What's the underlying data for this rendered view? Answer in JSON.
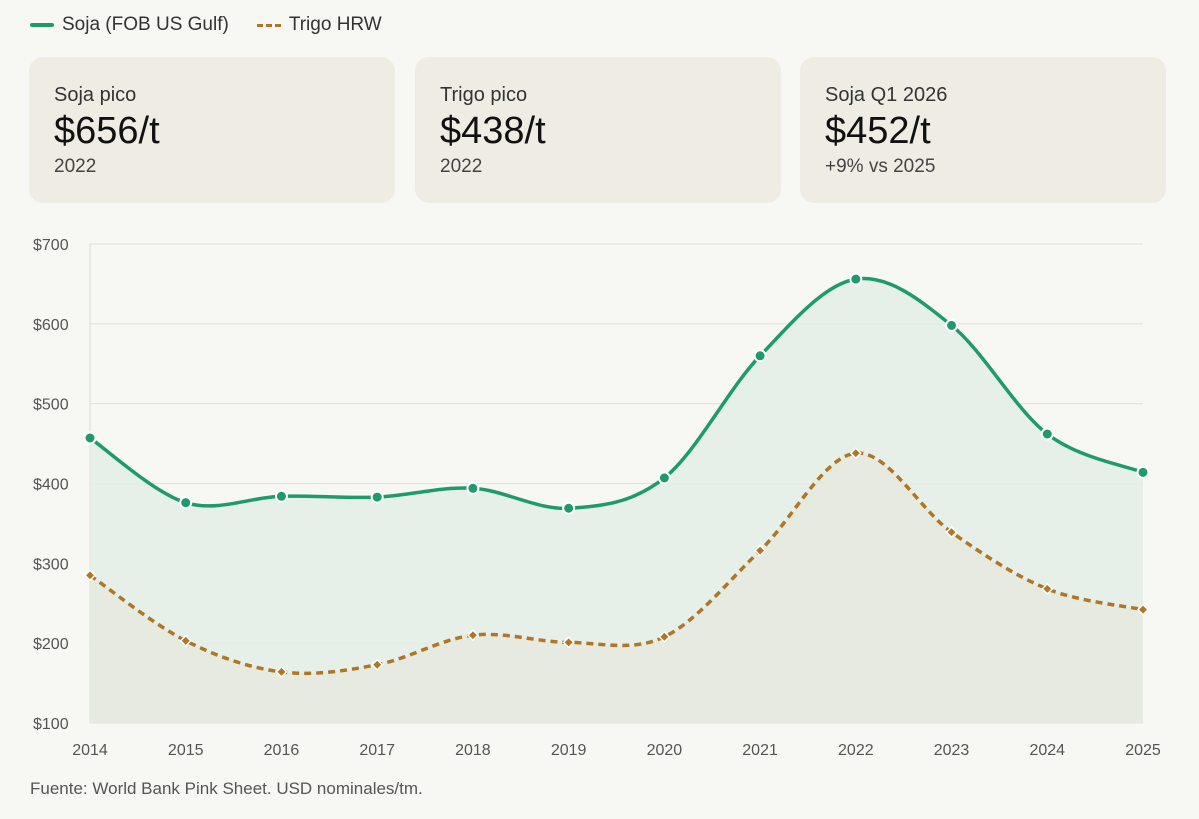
{
  "legend": {
    "items": [
      {
        "label": "Soja (FOB US Gulf)",
        "style": "solid",
        "color": "#1f9a6c"
      },
      {
        "label": "Trigo HRW",
        "style": "dashed",
        "color": "#b07525"
      }
    ]
  },
  "cards": [
    {
      "label": "Soja pico",
      "value": "$656/t",
      "sub": "2022"
    },
    {
      "label": "Trigo pico",
      "value": "$438/t",
      "sub": "2022"
    },
    {
      "label": "Soja Q1 2026",
      "value": "$452/t",
      "sub": "+9% vs 2025"
    }
  ],
  "chart_data": {
    "type": "line",
    "title": "",
    "xlabel": "",
    "ylabel": "",
    "x": [
      "2014",
      "2015",
      "2016",
      "2017",
      "2018",
      "2019",
      "2020",
      "2021",
      "2022",
      "2023",
      "2024",
      "2025"
    ],
    "ylim": [
      100,
      700
    ],
    "yticks": [
      100,
      200,
      300,
      400,
      500,
      600,
      700
    ],
    "ytick_labels": [
      "$100",
      "$200",
      "$300",
      "$400",
      "$500",
      "$600",
      "$700"
    ],
    "grid": true,
    "legend_position": "top-left",
    "series": [
      {
        "name": "Soja (FOB US Gulf)",
        "values": [
          457,
          376,
          384,
          383,
          394,
          369,
          407,
          560,
          656,
          598,
          462,
          414
        ],
        "color": "#1f9a6c",
        "style": "solid",
        "fill": "#e3efe6"
      },
      {
        "name": "Trigo HRW",
        "values": [
          285,
          203,
          164,
          173,
          210,
          201,
          208,
          316,
          438,
          339,
          268,
          242
        ],
        "color": "#b07525",
        "style": "dashed",
        "fill": "#e6e8dc"
      }
    ]
  },
  "footer": {
    "text": "Fuente: World Bank Pink Sheet. USD nominales/tm."
  }
}
